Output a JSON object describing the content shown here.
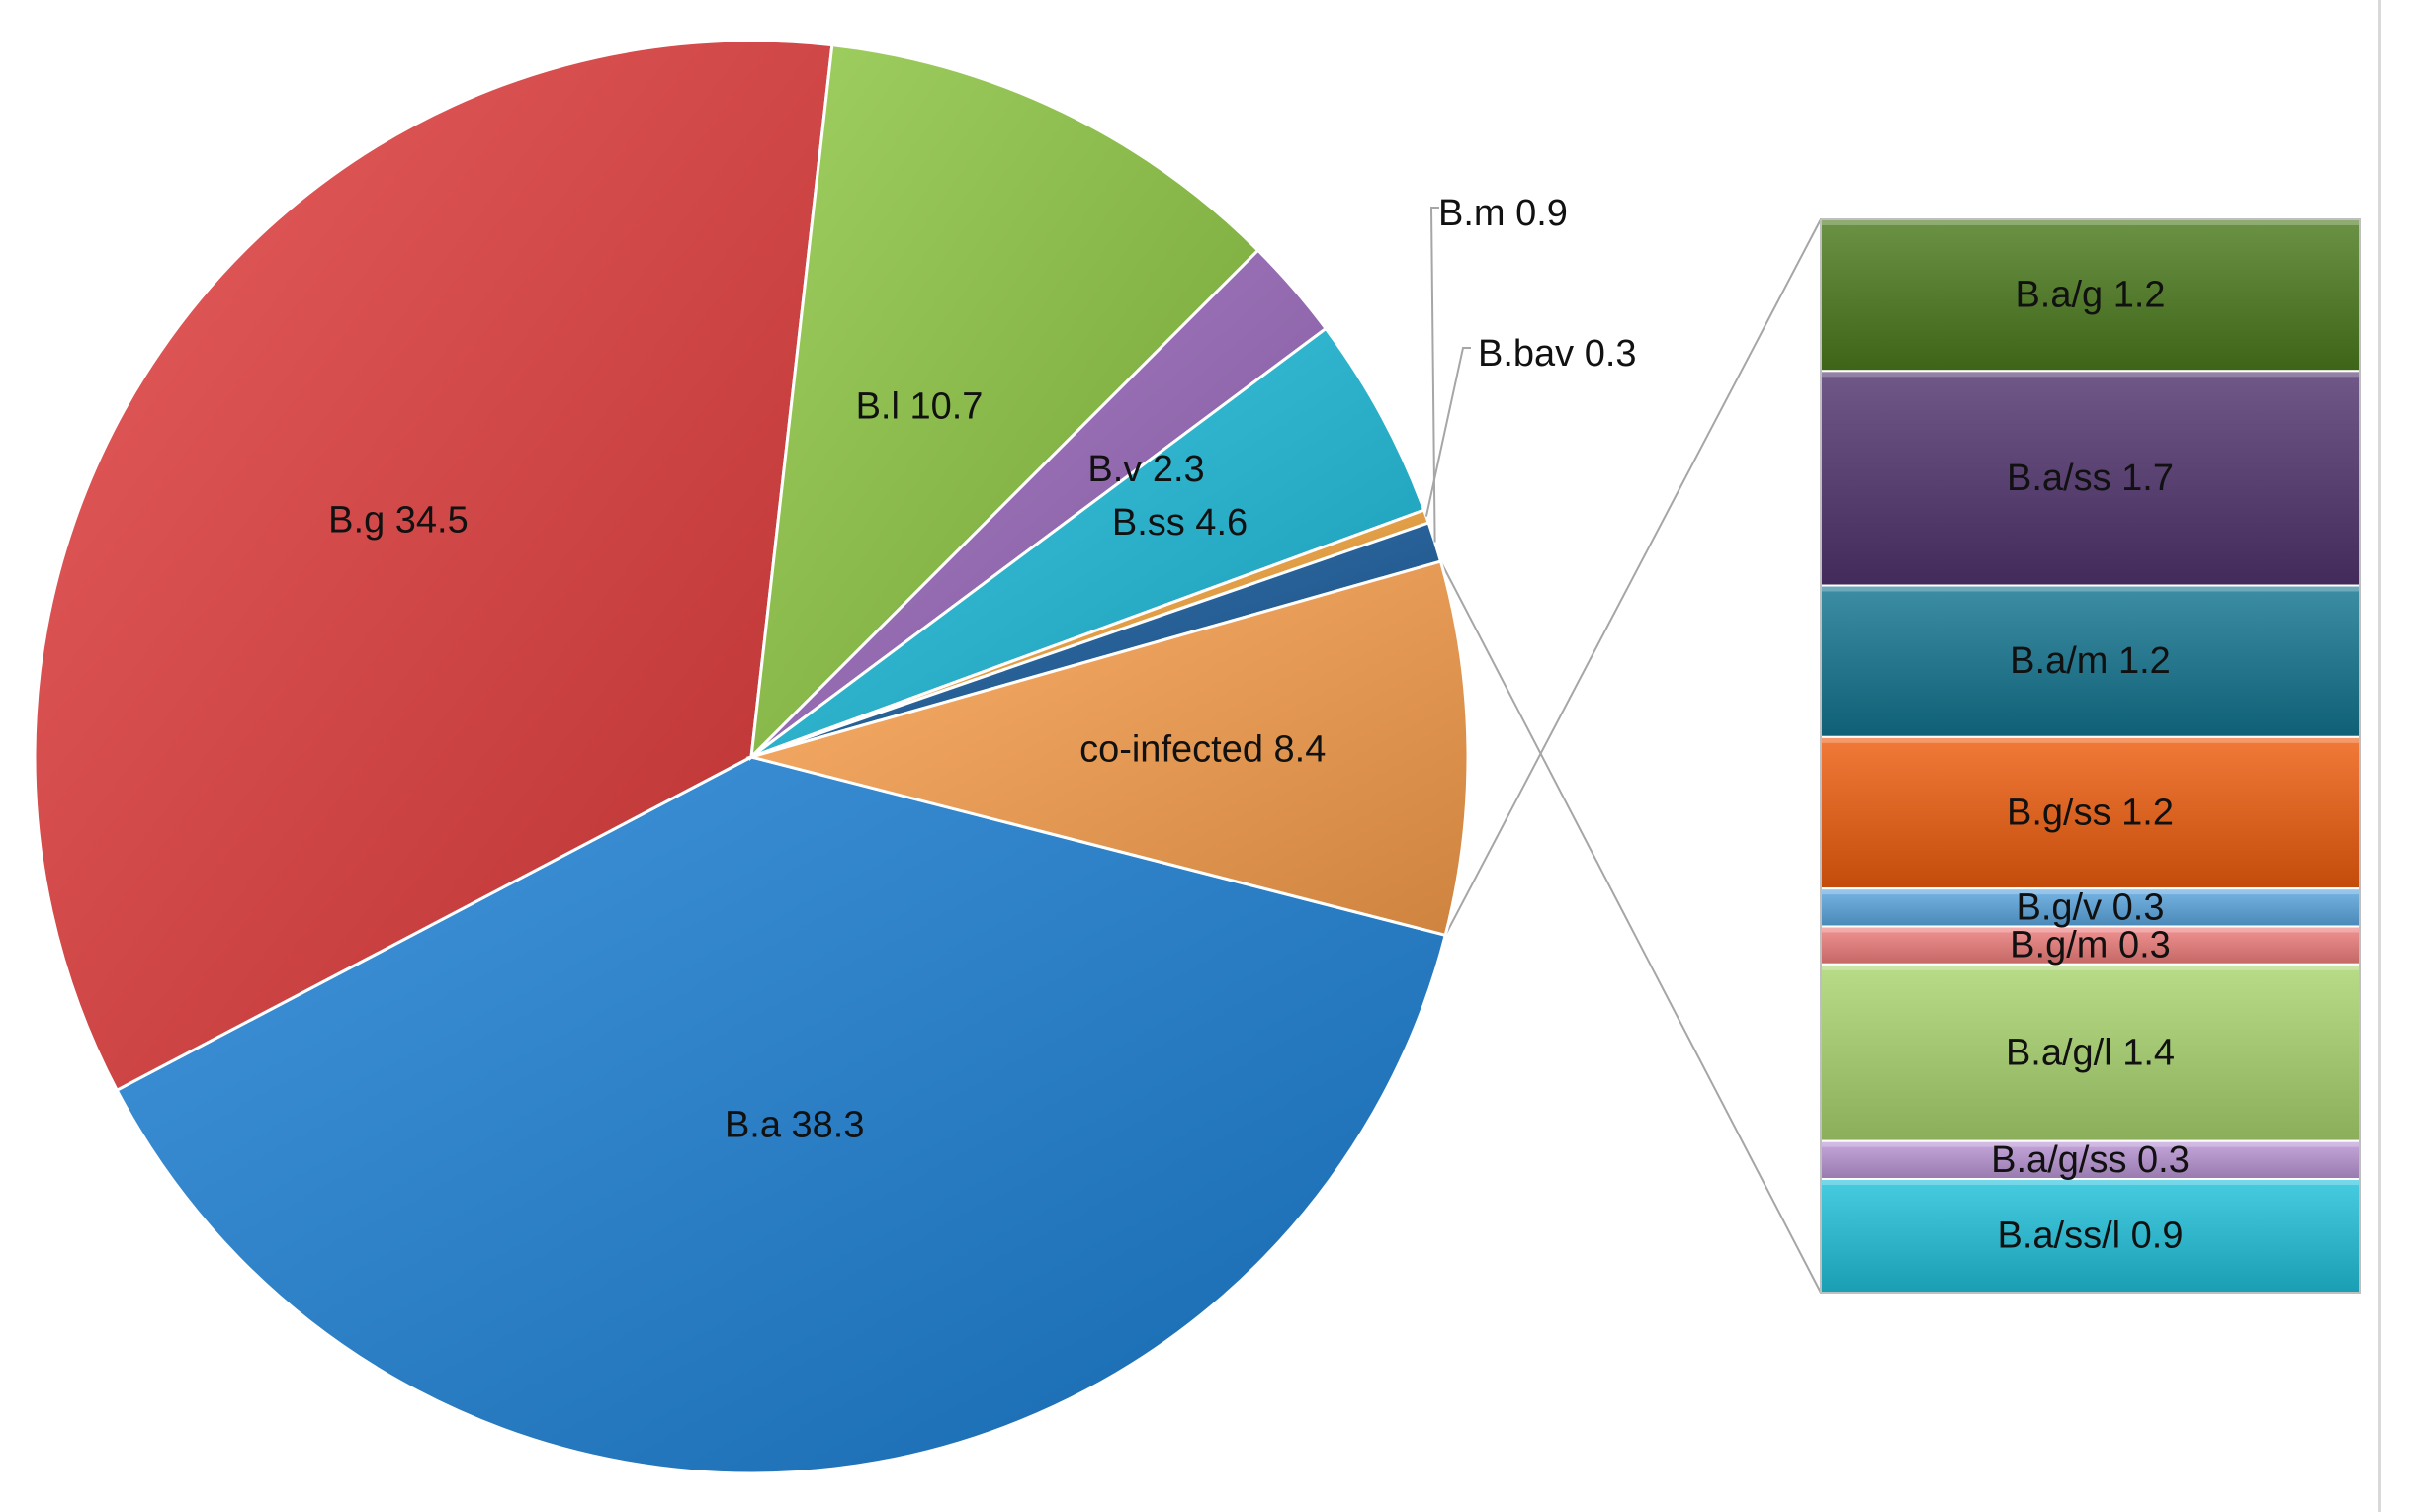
{
  "chart_data": {
    "type": "bar-of-pie",
    "pie": {
      "slices": [
        {
          "label": "B.a 38.3",
          "value": 38.3,
          "color": "#1a7fd4"
        },
        {
          "label": "B.g 34.5",
          "value": 34.5,
          "color": "#e23b3b"
        },
        {
          "label": "B.l 10.7",
          "value": 10.7,
          "color": "#8cc63f"
        },
        {
          "label": "B.v 2.3",
          "value": 2.3,
          "color": "#9966bb"
        },
        {
          "label": "B.ss 4.6",
          "value": 4.6,
          "color": "#1bbcdc"
        },
        {
          "label": "B.bav 0.3",
          "value": 0.3,
          "color": "#f6a53a"
        },
        {
          "label": "B.m 0.9",
          "value": 0.9,
          "color": "#155a9c"
        },
        {
          "label": "co-infected 8.4",
          "value": 8.4,
          "color": "#fba04c"
        }
      ]
    },
    "bar": {
      "segments": [
        {
          "label": "B.a/g 1.2",
          "value": 1.2,
          "color": "#4a7a1c"
        },
        {
          "label": "B.a/ss 1.7",
          "value": 1.7,
          "color": "#51336e"
        },
        {
          "label": "B.a/m 1.2",
          "value": 1.2,
          "color": "#127590"
        },
        {
          "label": "B.g/ss 1.2",
          "value": 1.2,
          "color": "#ef5d0e"
        },
        {
          "label": "B.g/v 0.3",
          "value": 0.3,
          "color": "#5aa6e0"
        },
        {
          "label": "B.g/m 0.3",
          "value": 0.3,
          "color": "#ee7d7b"
        },
        {
          "label": "B.a/g/l 1.4",
          "value": 1.4,
          "color": "#a9d46e"
        },
        {
          "label": "B.a/g/ss 0.3",
          "value": 0.3,
          "color": "#b995d6"
        },
        {
          "label": "B.a/ss/l 0.9",
          "value": 0.9,
          "color": "#1fc1dc"
        }
      ]
    }
  }
}
